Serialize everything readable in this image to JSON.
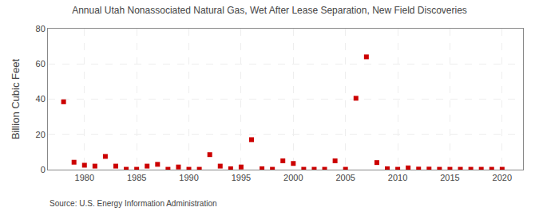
{
  "chart_data": {
    "type": "scatter",
    "title": "Annual Utah Nonassociated Natural Gas, Wet After Lease Separation, New Field Discoveries",
    "ylabel": "Billion Cubic Feet",
    "source": "Source: U.S. Energy Information Administration",
    "x": [
      1978,
      1979,
      1980,
      1981,
      1982,
      1983,
      1984,
      1985,
      1986,
      1987,
      1988,
      1989,
      1990,
      1991,
      1992,
      1993,
      1994,
      1995,
      1996,
      1997,
      1998,
      1999,
      2000,
      2001,
      2002,
      2003,
      2004,
      2005,
      2006,
      2007,
      2008,
      2009,
      2010,
      2011,
      2012,
      2013,
      2014,
      2015,
      2016,
      2017,
      2018,
      2019,
      2020
    ],
    "values": [
      38.5,
      4.2,
      2.5,
      2.0,
      7.5,
      2.0,
      0.2,
      0.2,
      2.0,
      3.0,
      0.2,
      1.5,
      0.2,
      0.2,
      8.5,
      2.0,
      0.5,
      1.5,
      17.0,
      0.5,
      0.2,
      5.0,
      3.5,
      0.2,
      0.2,
      0.2,
      5.0,
      0.2,
      40.5,
      64.0,
      4.0,
      0.5,
      0.2,
      1.0,
      0.3,
      0.3,
      0.2,
      0.2,
      0.2,
      0.2,
      0.2,
      0.2,
      0.2
    ],
    "color": "#cc0000",
    "marker": "square",
    "xlim": [
      1976.5,
      2022
    ],
    "ylim": [
      0,
      80
    ],
    "xticks": [
      1980,
      1985,
      1990,
      1995,
      2000,
      2005,
      2010,
      2015,
      2020
    ],
    "yticks": [
      0,
      20,
      40,
      60,
      80
    ],
    "grid": true
  }
}
